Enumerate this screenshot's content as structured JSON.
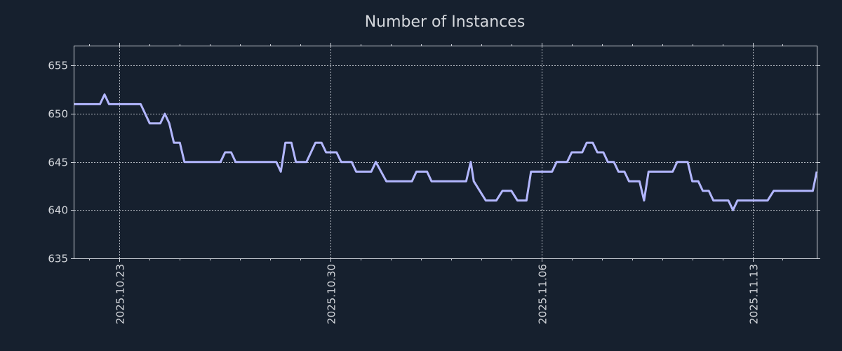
{
  "chart_data": {
    "type": "line",
    "title": "Number of Instances",
    "xlabel": "",
    "ylabel": "",
    "grid": true,
    "ylim": [
      635,
      657
    ],
    "xlim": [
      0,
      24.63
    ],
    "yticks": [
      635,
      640,
      645,
      650,
      655
    ],
    "xticks": [
      {
        "day": 1.5,
        "label": "2025.10.23"
      },
      {
        "day": 8.5,
        "label": "2025.10.30"
      },
      {
        "day": 15.5,
        "label": "2025.11.06"
      },
      {
        "day": 22.5,
        "label": "2025.11.13"
      }
    ],
    "x_minor_ticks": [
      0.5,
      2.5,
      3.5,
      4.5,
      5.5,
      6.5,
      7.5,
      9.5,
      10.5,
      11.5,
      12.5,
      13.5,
      14.5,
      16.5,
      17.5,
      18.5,
      19.5,
      20.5,
      21.5,
      23.5
    ],
    "x_units": "days since 2025-10-21 12:00",
    "series": [
      {
        "name": "Number of Instances",
        "color": "#b3b7ff",
        "points": [
          [
            0.0,
            651
          ],
          [
            0.85,
            651
          ],
          [
            1.0,
            652
          ],
          [
            1.15,
            651
          ],
          [
            2.2,
            651
          ],
          [
            2.5,
            649
          ],
          [
            2.85,
            649
          ],
          [
            3.0,
            650
          ],
          [
            3.15,
            649
          ],
          [
            3.3,
            647
          ],
          [
            3.5,
            647
          ],
          [
            3.65,
            645
          ],
          [
            4.85,
            645
          ],
          [
            5.0,
            646
          ],
          [
            5.2,
            646
          ],
          [
            5.35,
            645
          ],
          [
            6.7,
            645
          ],
          [
            6.85,
            644
          ],
          [
            7.0,
            647
          ],
          [
            7.2,
            647
          ],
          [
            7.35,
            645
          ],
          [
            7.7,
            645
          ],
          [
            8.0,
            647
          ],
          [
            8.2,
            647
          ],
          [
            8.35,
            646
          ],
          [
            8.7,
            646
          ],
          [
            8.85,
            645
          ],
          [
            9.2,
            645
          ],
          [
            9.35,
            644
          ],
          [
            9.85,
            644
          ],
          [
            10.0,
            645
          ],
          [
            10.35,
            643
          ],
          [
            11.2,
            643
          ],
          [
            11.35,
            644
          ],
          [
            11.7,
            644
          ],
          [
            11.85,
            643
          ],
          [
            13.0,
            643
          ],
          [
            13.15,
            645
          ],
          [
            13.25,
            643
          ],
          [
            13.65,
            641
          ],
          [
            14.0,
            641
          ],
          [
            14.2,
            642
          ],
          [
            14.5,
            642
          ],
          [
            14.7,
            641
          ],
          [
            15.0,
            641
          ],
          [
            15.15,
            644
          ],
          [
            15.85,
            644
          ],
          [
            16.0,
            645
          ],
          [
            16.35,
            645
          ],
          [
            16.5,
            646
          ],
          [
            16.85,
            646
          ],
          [
            17.0,
            647
          ],
          [
            17.2,
            647
          ],
          [
            17.35,
            646
          ],
          [
            17.55,
            646
          ],
          [
            17.7,
            645
          ],
          [
            17.9,
            645
          ],
          [
            18.05,
            644
          ],
          [
            18.25,
            644
          ],
          [
            18.4,
            643
          ],
          [
            18.75,
            643
          ],
          [
            18.9,
            641
          ],
          [
            19.05,
            644
          ],
          [
            19.85,
            644
          ],
          [
            20.0,
            645
          ],
          [
            20.35,
            645
          ],
          [
            20.5,
            643
          ],
          [
            20.7,
            643
          ],
          [
            20.85,
            642
          ],
          [
            21.05,
            642
          ],
          [
            21.2,
            641
          ],
          [
            21.7,
            641
          ],
          [
            21.85,
            640
          ],
          [
            22.0,
            641
          ],
          [
            23.0,
            641
          ],
          [
            23.2,
            642
          ],
          [
            24.5,
            642
          ],
          [
            24.63,
            644
          ]
        ]
      }
    ]
  }
}
